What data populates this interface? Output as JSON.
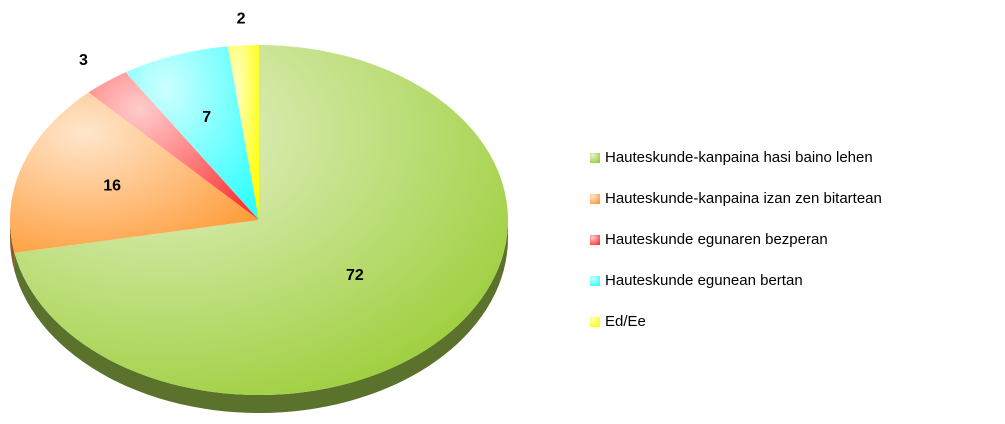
{
  "chart_data": {
    "type": "pie",
    "categories": [
      "Hauteskunde-kanpaina hasi baino lehen",
      "Hauteskunde-kanpaina izan zen bitartean",
      "Hauteskunde egunaren bezperan",
      "Hauteskunde egunean bertan",
      "Ed/Ee"
    ],
    "values": [
      72,
      16,
      3,
      7,
      2
    ],
    "colors": [
      "#99cc33",
      "#ff9933",
      "#ff3333",
      "#33ffff",
      "#ffff00"
    ],
    "legend": "right"
  }
}
